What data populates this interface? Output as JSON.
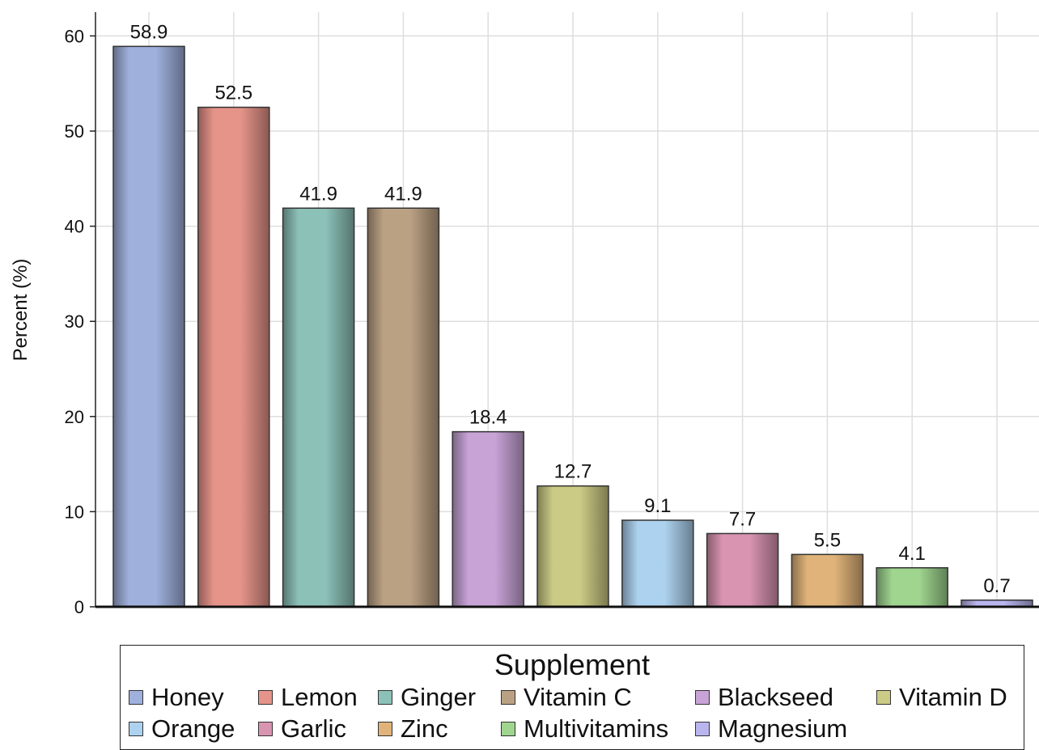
{
  "chart_data": {
    "type": "bar",
    "categories": [
      "Honey",
      "Lemon",
      "Ginger",
      "Vitamin C",
      "Blackseed",
      "Vitamin D",
      "Orange",
      "Garlic",
      "Zinc",
      "Multivitamins",
      "Magnesium"
    ],
    "values": [
      58.9,
      52.5,
      41.9,
      41.9,
      18.4,
      12.7,
      9.1,
      7.7,
      5.5,
      4.1,
      0.7
    ],
    "value_labels": [
      "58.9",
      "52.5",
      "41.9",
      "41.9",
      "18.4",
      "12.7",
      "9.1",
      "7.7",
      "5.5",
      "4.1",
      "0.7"
    ],
    "colors": [
      "#9fb0dc",
      "#e6948a",
      "#8cc1b8",
      "#bba184",
      "#c7a3d6",
      "#cccb86",
      "#add2ef",
      "#d994b2",
      "#e0b37a",
      "#9fd58f",
      "#b9b5ee"
    ],
    "ylabel": "Percent (%)",
    "xlabel": "",
    "ylim": [
      0,
      62.5
    ],
    "yticks": [
      0,
      10,
      20,
      30,
      40,
      50,
      60
    ],
    "ytick_labels": [
      "0",
      "10",
      "20",
      "30",
      "40",
      "50",
      "60"
    ],
    "grid": true,
    "legend": {
      "title": "Supplement",
      "placement": "bottom"
    }
  }
}
